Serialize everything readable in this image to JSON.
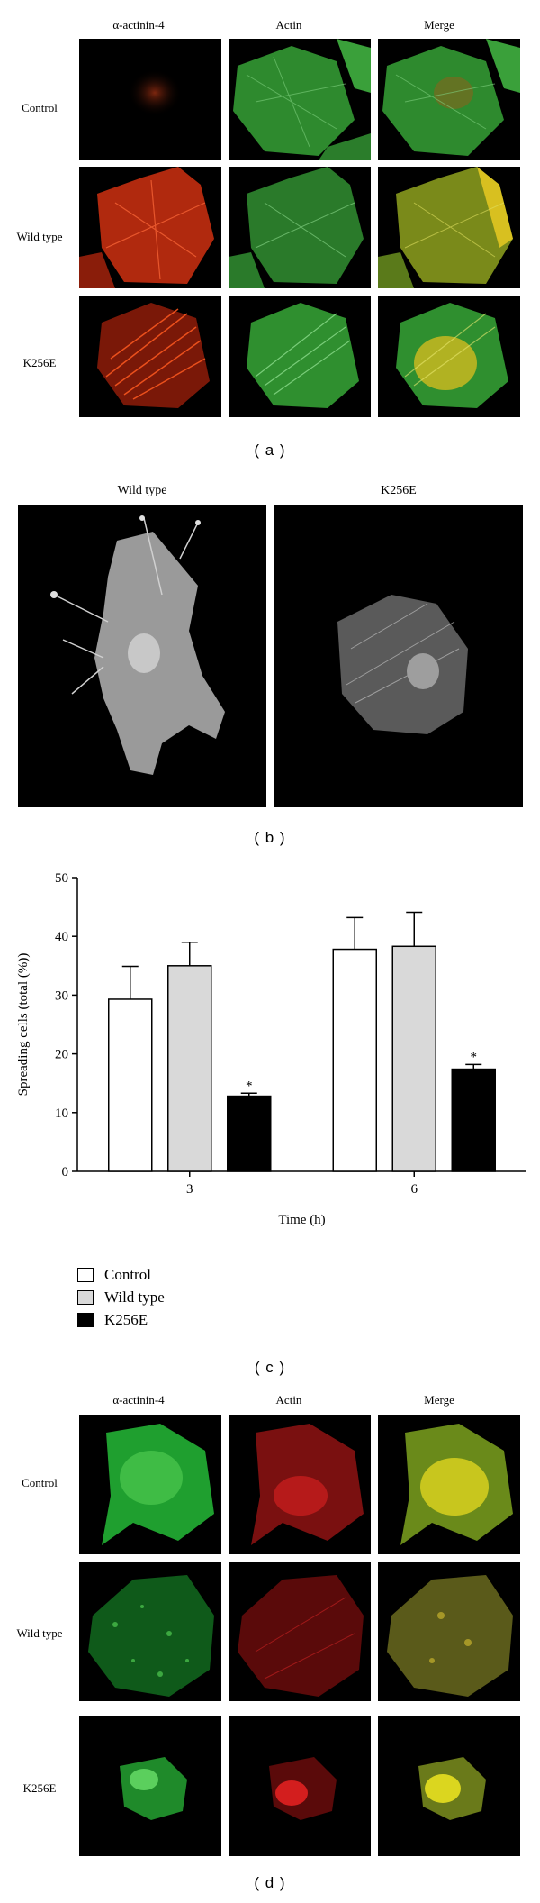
{
  "panel_a": {
    "label": "( a )",
    "columns": [
      "α-actinin-4",
      "Actin",
      "Merge"
    ],
    "rows": [
      "Control",
      "Wild type",
      "K256E"
    ]
  },
  "panel_b": {
    "label": "( b )",
    "columns": [
      "Wild type",
      "K256E"
    ]
  },
  "panel_c": {
    "label": "( c )",
    "legend": [
      "Control",
      "Wild type",
      "K256E"
    ],
    "colors": {
      "Control": "#ffffff",
      "Wild type": "#d9d9d9",
      "K256E": "#000000"
    }
  },
  "panel_d": {
    "label": "( d )",
    "columns": [
      "α-actinin-4",
      "Actin",
      "Merge"
    ],
    "rows": [
      "Control",
      "Wild type",
      "K256E"
    ]
  },
  "chart_data": {
    "type": "bar",
    "title": "",
    "xlabel": "Time (h)",
    "ylabel": "Spreading cells (total (%))",
    "categories": [
      "3",
      "6"
    ],
    "ylim": [
      0,
      50
    ],
    "yticks": [
      "0",
      "10",
      "20",
      "30",
      "40",
      "50"
    ],
    "series": [
      {
        "name": "Control",
        "values": [
          29.3,
          37.8
        ],
        "errors": [
          5.6,
          5.4
        ]
      },
      {
        "name": "Wild type",
        "values": [
          35.0,
          38.3
        ],
        "errors": [
          4.0,
          5.8
        ]
      },
      {
        "name": "K256E",
        "values": [
          12.8,
          17.4
        ],
        "errors": [
          0.5,
          0.8
        ],
        "annotation": "*"
      }
    ],
    "grid": false,
    "legend_placement": "bottom-left"
  }
}
